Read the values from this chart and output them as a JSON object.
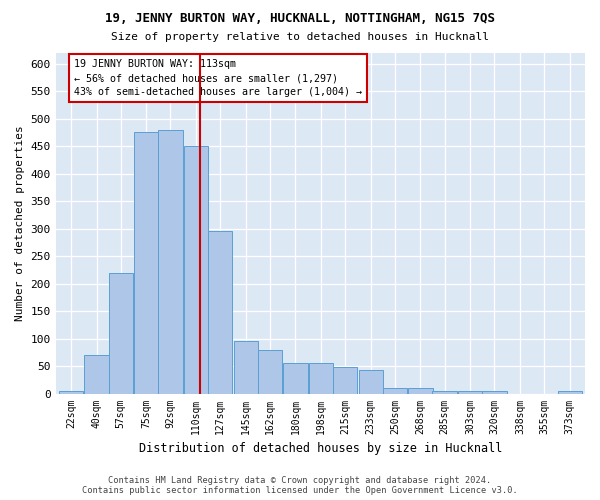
{
  "title1": "19, JENNY BURTON WAY, HUCKNALL, NOTTINGHAM, NG15 7QS",
  "title2": "Size of property relative to detached houses in Hucknall",
  "xlabel": "Distribution of detached houses by size in Hucknall",
  "ylabel": "Number of detached properties",
  "bin_labels": [
    "22sqm",
    "40sqm",
    "57sqm",
    "75sqm",
    "92sqm",
    "110sqm",
    "127sqm",
    "145sqm",
    "162sqm",
    "180sqm",
    "198sqm",
    "215sqm",
    "233sqm",
    "250sqm",
    "268sqm",
    "285sqm",
    "303sqm",
    "320sqm",
    "338sqm",
    "355sqm",
    "373sqm"
  ],
  "bar_heights": [
    4,
    70,
    220,
    475,
    480,
    450,
    295,
    95,
    80,
    55,
    55,
    48,
    42,
    10,
    10,
    4,
    4,
    4,
    0,
    0,
    4
  ],
  "bar_color": "#aec6e8",
  "bar_edge_color": "#5a9fd4",
  "property_size": 113,
  "property_label": "19 JENNY BURTON WAY: 113sqm",
  "annotation_line1": "← 56% of detached houses are smaller (1,297)",
  "annotation_line2": "43% of semi-detached houses are larger (1,004) →",
  "red_line_color": "#cc0000",
  "annotation_box_edge": "#cc0000",
  "annotation_bg": "#ffffff",
  "footer1": "Contains HM Land Registry data © Crown copyright and database right 2024.",
  "footer2": "Contains public sector information licensed under the Open Government Licence v3.0.",
  "bg_color": "#dde8f5",
  "ylim": [
    0,
    620
  ],
  "bin_width": 17,
  "n_bins": 21,
  "bin_starts": [
    22,
    40,
    57,
    75,
    92,
    110,
    127,
    145,
    162,
    180,
    198,
    215,
    233,
    250,
    268,
    285,
    303,
    320,
    338,
    355,
    373
  ]
}
